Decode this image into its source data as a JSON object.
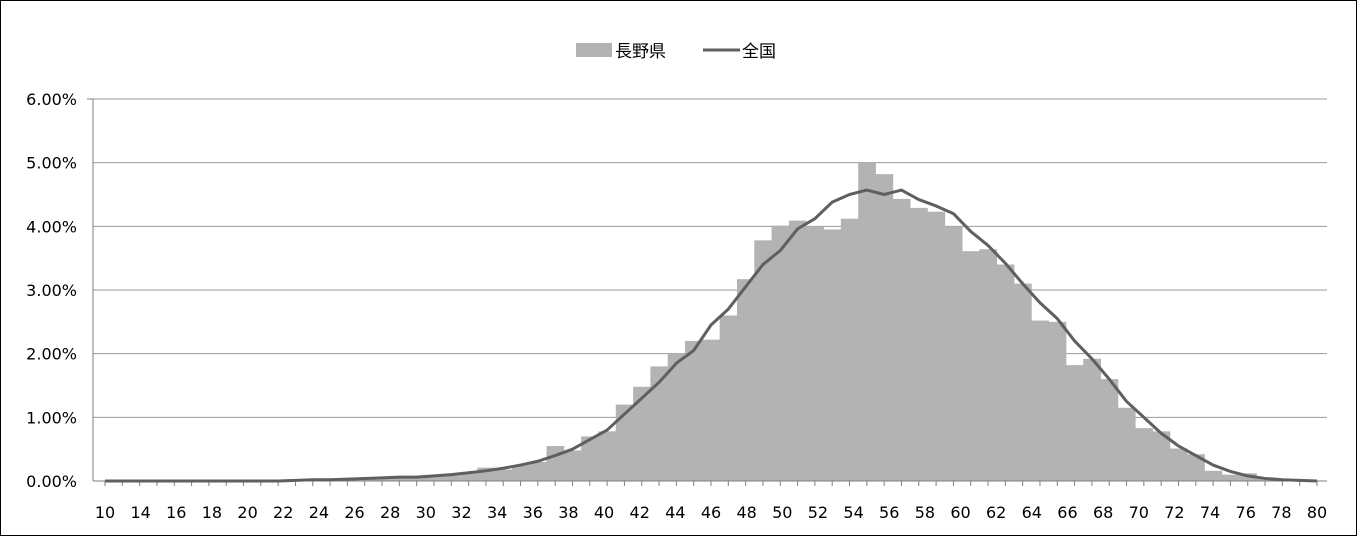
{
  "chart_data": {
    "type": "bar",
    "legend": {
      "placement": "top",
      "entries": [
        {
          "name": "長野県",
          "kind": "bar",
          "color": "#b3b3b3"
        },
        {
          "name": "全国",
          "kind": "line",
          "color": "#5f5f5f"
        }
      ]
    },
    "x_tick_labels": [
      "10",
      "14",
      "16",
      "18",
      "20",
      "22",
      "24",
      "26",
      "28",
      "30",
      "32",
      "34",
      "36",
      "38",
      "40",
      "42",
      "44",
      "46",
      "48",
      "50",
      "52",
      "54",
      "56",
      "58",
      "60",
      "62",
      "64",
      "66",
      "68",
      "70",
      "72",
      "74",
      "76",
      "78",
      "80"
    ],
    "x": [
      10,
      11,
      12,
      13,
      14,
      15,
      16,
      17,
      18,
      19,
      20,
      21,
      22,
      23,
      24,
      25,
      26,
      27,
      28,
      29,
      30,
      31,
      32,
      33,
      34,
      35,
      36,
      37,
      38,
      39,
      40,
      41,
      42,
      43,
      44,
      45,
      46,
      47,
      48,
      49,
      50,
      51,
      52,
      53,
      54,
      55,
      56,
      57,
      58,
      59,
      60,
      61,
      62,
      63,
      64,
      65,
      66,
      67,
      68,
      69,
      70,
      71,
      72,
      73,
      74,
      75,
      76,
      77,
      78,
      79,
      80
    ],
    "series": [
      {
        "name": "長野県",
        "type": "bar",
        "values": [
          0,
          0,
          0,
          0,
          0,
          0,
          0,
          0,
          0,
          0,
          0,
          0.0001,
          0.0001,
          0.0001,
          0.0002,
          0.0003,
          0.0004,
          0.0005,
          0.0005,
          0.0007,
          0.0009,
          0.0012,
          0.0021,
          0.0018,
          0.0025,
          0.003,
          0.0055,
          0.0048,
          0.007,
          0.0078,
          0.012,
          0.0148,
          0.018,
          0.02,
          0.022,
          0.0222,
          0.026,
          0.0317,
          0.0378,
          0.0401,
          0.0409,
          0.04,
          0.0395,
          0.0412,
          0.05,
          0.0482,
          0.0443,
          0.0429,
          0.0423,
          0.04,
          0.0361,
          0.0364,
          0.034,
          0.031,
          0.0252,
          0.025,
          0.0182,
          0.0192,
          0.016,
          0.0115,
          0.0083,
          0.0078,
          0.0051,
          0.0042,
          0.0016,
          0.001,
          0.0012,
          0.0004,
          0.0002,
          0.0001,
          0
        ]
      },
      {
        "name": "全国",
        "type": "line",
        "values": [
          0,
          0,
          0,
          0,
          0,
          0,
          0,
          0,
          0,
          0,
          0,
          0.0001,
          0.0002,
          0.0002,
          0.0003,
          0.0004,
          0.0005,
          0.0006,
          0.0006,
          0.0008,
          0.001,
          0.0013,
          0.0016,
          0.002,
          0.0025,
          0.0031,
          0.004,
          0.005,
          0.0065,
          0.008,
          0.0105,
          0.013,
          0.0155,
          0.0185,
          0.0205,
          0.0245,
          0.027,
          0.0305,
          0.034,
          0.0362,
          0.0396,
          0.0412,
          0.0438,
          0.045,
          0.0457,
          0.045,
          0.0457,
          0.0442,
          0.0432,
          0.042,
          0.0392,
          0.037,
          0.0342,
          0.031,
          0.028,
          0.0255,
          0.022,
          0.0192,
          0.016,
          0.0125,
          0.01,
          0.0075,
          0.0055,
          0.004,
          0.0025,
          0.0015,
          0.0008,
          0.0004,
          0.0002,
          0.0001,
          0
        ]
      }
    ],
    "y_tick_labels": [
      "0.00%",
      "1.00%",
      "2.00%",
      "3.00%",
      "4.00%",
      "5.00%",
      "6.00%"
    ],
    "ylim": [
      0,
      0.06
    ],
    "y_format": "percent",
    "grid": {
      "horizontal": true,
      "vertical": false
    }
  }
}
